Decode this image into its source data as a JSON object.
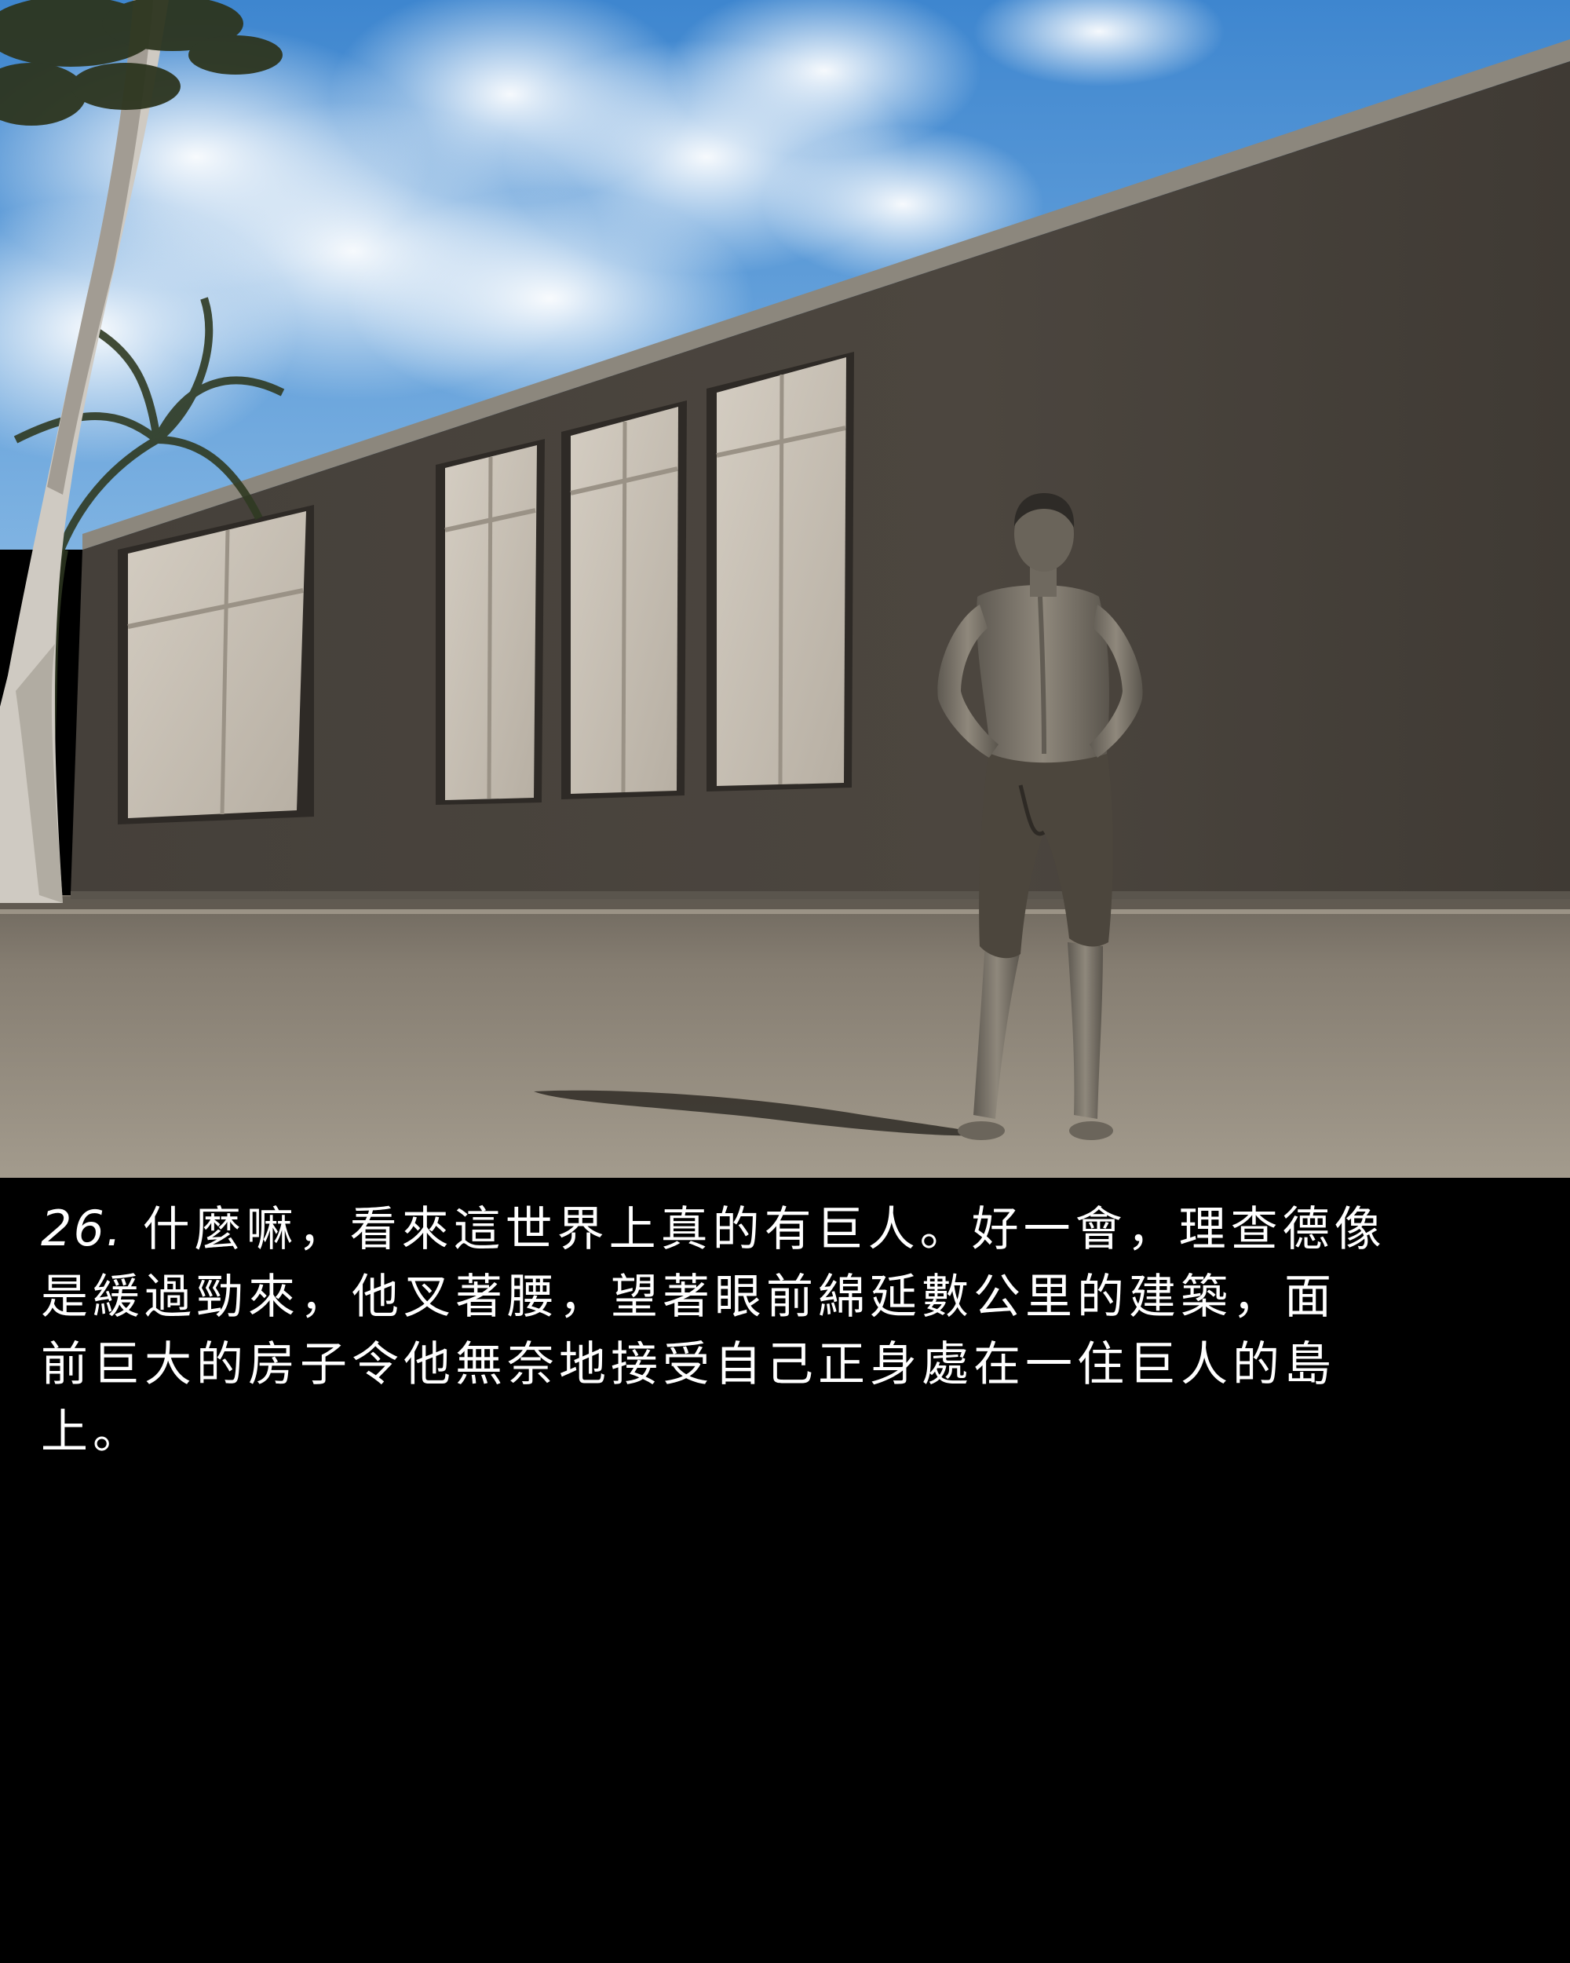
{
  "caption": {
    "number": "26.",
    "lines": [
      " 什麼嘛，看來這世界上真的有巨人。好一會，理查德像",
      "是緩過勁來，他叉著腰，望著眼前綿延數公里的建築，面",
      "前巨大的房子令他無奈地接受自己正身處在一住巨人的島",
      "上。"
    ]
  },
  "scene": {
    "description_icons": [
      "tree-icon",
      "palm-icon",
      "building-icon",
      "person-icon"
    ],
    "colors": {
      "sky": "#4a8fd0",
      "cloud": "#f2f4f6",
      "wall": "#4b4640",
      "ground": "#8a8275",
      "window": "#c9c2b7",
      "caption_bg": "#000000",
      "caption_text": "#ffffff"
    }
  }
}
